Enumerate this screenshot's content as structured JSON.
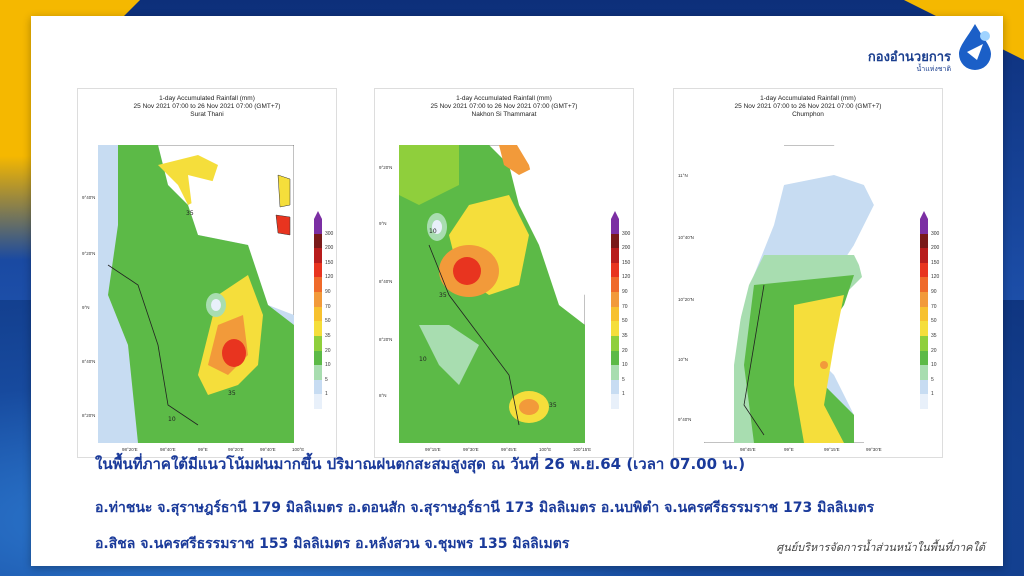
{
  "brand": {
    "name": "กองอำนวยการ",
    "subname": "น้ำแห่งชาติ"
  },
  "colors": {
    "title_blue": "#1a3a9a",
    "accent_yellow": "#f5b800",
    "background_blue": "#1a3f8f"
  },
  "maps": [
    {
      "title_line1": "1-day Accumulated Rainfall (mm)",
      "title_line2": "25 Nov 2021 07:00 to 26 Nov 2021 07:00 (GMT+7)",
      "province": "Surat Thani",
      "lat_labels": [
        "9°40'N",
        "9°20'N",
        "9°N",
        "8°40'N",
        "8°20'N"
      ],
      "lon_labels": [
        "98°20'E",
        "98°40'E",
        "99°E",
        "99°20'E",
        "99°40'E",
        "100°E"
      ],
      "contour_labels": [
        "35",
        "35",
        "10",
        "10"
      ]
    },
    {
      "title_line1": "1-day Accumulated Rainfall (mm)",
      "title_line2": "25 Nov 2021 07:00 to 26 Nov 2021 07:00 (GMT+7)",
      "province": "Nakhon Si Thammarat",
      "lat_labels": [
        "9°20'N",
        "9°N",
        "8°40'N",
        "8°20'N",
        "8°N"
      ],
      "lon_labels": [
        "99°15'E",
        "99°30'E",
        "99°45'E",
        "100°E",
        "100°15'E"
      ],
      "contour_labels": [
        "10",
        "35",
        "10",
        "35"
      ]
    },
    {
      "title_line1": "1-day Accumulated Rainfall (mm)",
      "title_line2": "25 Nov 2021 07:00 to 26 Nov 2021 07:00 (GMT+7)",
      "province": "Chumphon",
      "lat_labels": [
        "11°N",
        "10°40'N",
        "10°20'N",
        "10°N",
        "9°40'N"
      ],
      "lon_labels": [
        "98°45'E",
        "99°E",
        "99°15'E",
        "99°30'E"
      ],
      "contour_labels": []
    }
  ],
  "legend": {
    "ticks": [
      "300",
      "200",
      "150",
      "120",
      "90",
      "70",
      "50",
      "35",
      "20",
      "10",
      "5",
      "1"
    ],
    "colors": [
      "#7b2fa3",
      "#7a1a1a",
      "#b81d1d",
      "#e8341f",
      "#ef6a2a",
      "#f29a3a",
      "#f7c12f",
      "#f5de3b",
      "#8fcf3c",
      "#5cba47",
      "#a8ddb0",
      "#c7dcf2",
      "#e8f0fa"
    ]
  },
  "text": {
    "headline": "ในพื้นที่ภาคใต้มีแนวโน้มฝนมากขึ้น ปริมาณฝนตกสะสมสูงสุด ณ วันที่ 26 พ.ย.64 (เวลา 07.00 น.)",
    "line2": "อ.ท่าชนะ จ.สุราษฎร์ธานี 179 มิลลิเมตร อ.ดอนสัก จ.สุราษฎร์ธานี 173 มิลลิเมตร อ.นบพิตำ จ.นครศรีธรรมราช 173 มิลลิเมตร",
    "line3": "อ.สิชล จ.นครศรีธรรมราช 153 มิลลิเมตร อ.หลังสวน จ.ชุมพร 135 มิลลิเมตร",
    "footer": "ศูนย์บริหารจัดการน้ำส่วนหน้าในพื้นที่ภาคใต้"
  }
}
